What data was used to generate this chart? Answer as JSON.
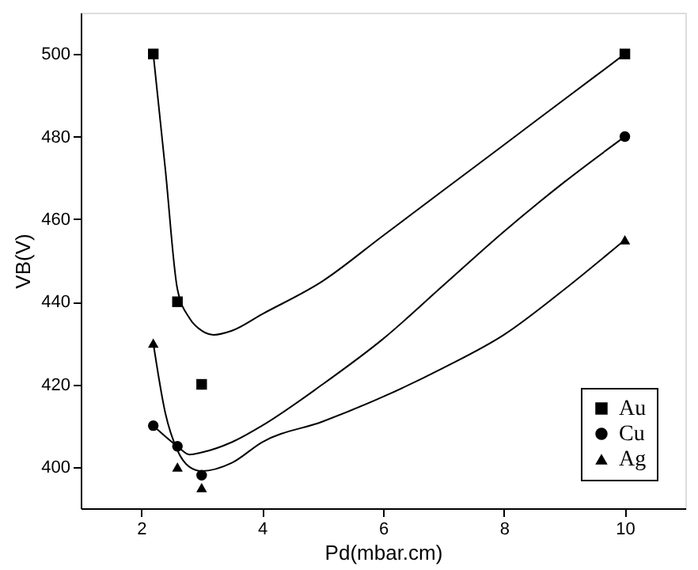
{
  "chart_data": {
    "type": "scatter",
    "xlabel": "Pd(mbar.cm)",
    "ylabel": "VB(V)",
    "xlim": [
      1,
      11
    ],
    "ylim": [
      390,
      510
    ],
    "xticks": [
      2,
      4,
      6,
      8,
      10
    ],
    "yticks": [
      400,
      420,
      440,
      460,
      480,
      500
    ],
    "grid": false,
    "legend": "bottom right",
    "series": [
      {
        "name": "Au",
        "marker": "square",
        "color": "#000000",
        "x": [
          2.2,
          2.6,
          3,
          10
        ],
        "values": [
          500,
          440,
          420,
          500
        ]
      },
      {
        "name": "Cu",
        "marker": "circle",
        "color": "#000000",
        "x": [
          2.2,
          2.6,
          3,
          10
        ],
        "values": [
          410,
          405,
          398,
          480
        ]
      },
      {
        "name": "Ag",
        "marker": "triangle",
        "color": "#000000",
        "x": [
          2.2,
          2.6,
          3,
          10
        ],
        "values": [
          430,
          400,
          395,
          455
        ]
      },
      {
        "type": "line",
        "marker": "none",
        "color": "#000000",
        "x": [
          2.2,
          2.4,
          2.6,
          2.8,
          3.0,
          3.2,
          3.5,
          4,
          5,
          6,
          7,
          8,
          9,
          10
        ],
        "values": [
          500,
          472,
          443,
          436,
          433,
          432,
          433,
          437,
          445,
          456,
          467,
          478,
          489,
          500
        ]
      },
      {
        "type": "line",
        "marker": "none",
        "color": "#000000",
        "x": [
          2.2,
          2.6,
          2.8,
          3.0,
          3.5,
          4,
          5,
          6,
          7,
          8,
          9,
          10
        ],
        "values": [
          410,
          405,
          403,
          403.5,
          406,
          410,
          420,
          431,
          444,
          457,
          469,
          480
        ]
      },
      {
        "type": "line",
        "marker": "none",
        "color": "#000000",
        "x": [
          2.2,
          2.4,
          2.6,
          2.8,
          3.0,
          3.5,
          4,
          5,
          6,
          7,
          8,
          9,
          10
        ],
        "values": [
          430,
          413,
          404,
          400,
          399,
          401,
          406,
          411,
          417,
          424,
          432,
          443,
          455
        ]
      }
    ]
  }
}
